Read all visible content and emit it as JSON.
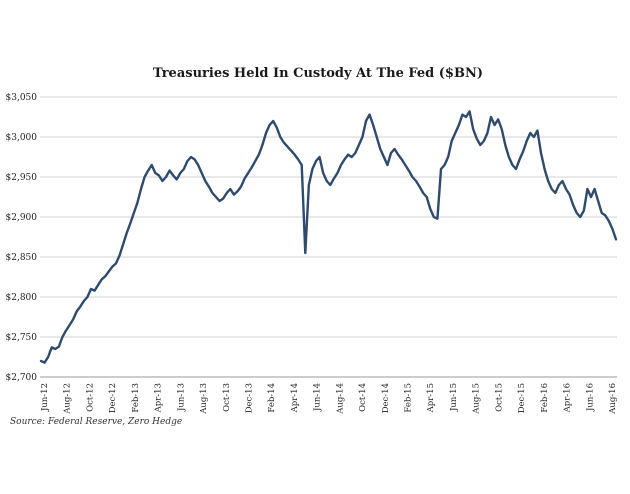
{
  "chart_data": {
    "type": "line",
    "title": "Treasuries Held In Custody At The Fed ($BN)",
    "xlabel": "",
    "ylabel": "",
    "ylim": [
      2700,
      3050
    ],
    "yticks": [
      2700,
      2750,
      2800,
      2850,
      2900,
      2950,
      3000,
      3050
    ],
    "ytick_labels": [
      "$2,700",
      "$2,750",
      "$2,800",
      "$2,850",
      "$2,900",
      "$2,950",
      "$3,000",
      "$3,050"
    ],
    "xticks": [
      "Jun-12",
      "Aug-12",
      "Oct-12",
      "Dec-12",
      "Feb-13",
      "Apr-13",
      "Jun-13",
      "Aug-13",
      "Oct-13",
      "Dec-13",
      "Feb-14",
      "Apr-14",
      "Jun-14",
      "Aug-14",
      "Oct-14",
      "Dec-14",
      "Feb-15",
      "Apr-15",
      "Jun-15",
      "Aug-15",
      "Oct-15",
      "Dec-15",
      "Feb-16",
      "Apr-16",
      "Jun-16",
      "Aug-16"
    ],
    "grid": true,
    "source": "Source: Federal Reserve, Zero Hedge",
    "color": "#2e4b6e",
    "series": [
      {
        "values": [
          2720,
          2718,
          2725,
          2737,
          2735,
          2738,
          2750,
          2758,
          2765,
          2772,
          2782,
          2788,
          2795,
          2800,
          2810,
          2808,
          2815,
          2822,
          2826,
          2832,
          2838,
          2842,
          2852,
          2866,
          2880,
          2892,
          2905,
          2918,
          2935,
          2950,
          2958,
          2965,
          2955,
          2952,
          2945,
          2950,
          2958,
          2952,
          2947,
          2955,
          2960,
          2970,
          2975,
          2972,
          2965,
          2955,
          2945,
          2938,
          2930,
          2925,
          2920,
          2923,
          2930,
          2935,
          2928,
          2932,
          2938,
          2948,
          2955,
          2962,
          2970,
          2978,
          2990,
          3005,
          3015,
          3020,
          3012,
          3000,
          2993,
          2988,
          2983,
          2978,
          2972,
          2965,
          2855,
          2940,
          2960,
          2970,
          2975,
          2955,
          2945,
          2940,
          2948,
          2955,
          2965,
          2972,
          2978,
          2975,
          2980,
          2990,
          3000,
          3020,
          3028,
          3015,
          3000,
          2985,
          2975,
          2965,
          2980,
          2985,
          2978,
          2972,
          2965,
          2958,
          2950,
          2945,
          2938,
          2930,
          2925,
          2910,
          2900,
          2898,
          2960,
          2965,
          2975,
          2995,
          3005,
          3015,
          3028,
          3025,
          3032,
          3010,
          2998,
          2990,
          2995,
          3005,
          3025,
          3015,
          3022,
          3010,
          2990,
          2975,
          2965,
          2960,
          2972,
          2982,
          2995,
          3005,
          3000,
          3008,
          2980,
          2960,
          2945,
          2935,
          2930,
          2940,
          2945,
          2935,
          2928,
          2915,
          2905,
          2900,
          2908,
          2935,
          2925,
          2935,
          2920,
          2905,
          2902,
          2895,
          2885,
          2872
        ]
      }
    ]
  }
}
